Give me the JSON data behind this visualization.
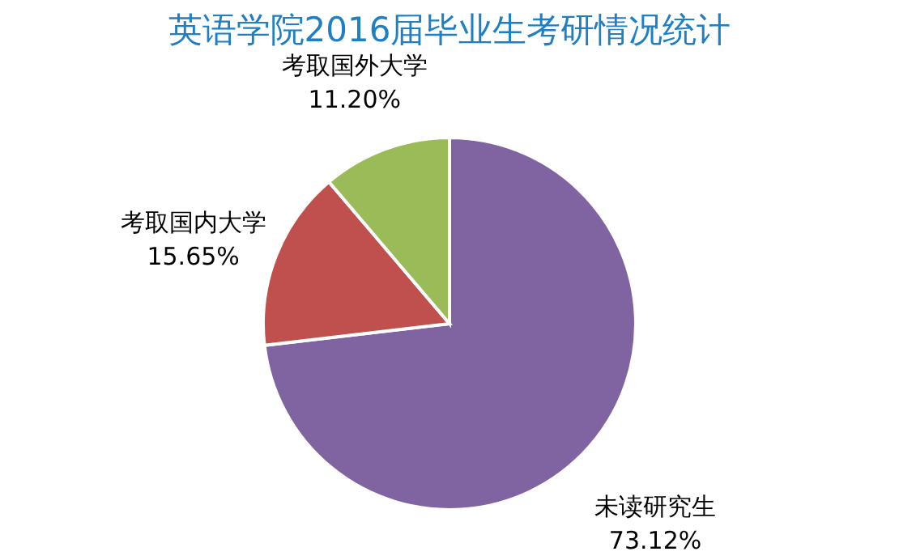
{
  "chart_data": {
    "type": "pie",
    "title": "英语学院2016届毕业生考研情况统计",
    "categories": [
      "未读研究生",
      "考取国内大学",
      "考取国外大学"
    ],
    "values": [
      73.12,
      15.65,
      11.2
    ],
    "value_labels": [
      "73.12%",
      "15.65%",
      "11.20%"
    ],
    "colors": [
      "#8064a2",
      "#c0504d",
      "#9bbb59"
    ],
    "legend": false
  }
}
